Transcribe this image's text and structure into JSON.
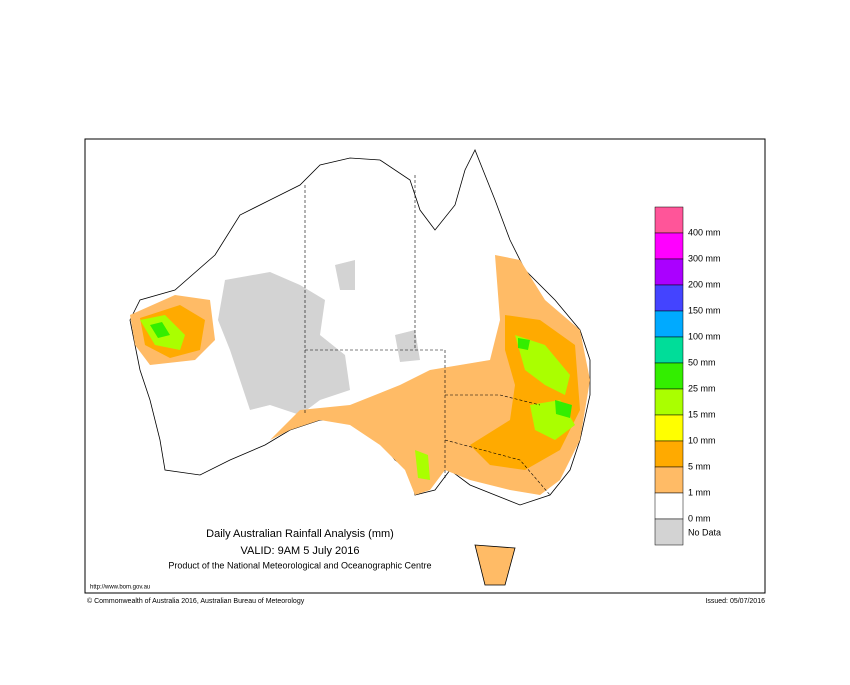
{
  "title": "Daily Australian Rainfall Analysis (mm)",
  "valid": "VALID: 9AM  5 July 2016",
  "product": "Product of the National Meteorological and Oceanographic Centre",
  "url": "http://www.bom.gov.au",
  "copyright": "© Commonwealth of Australia 2016, Australian Bureau of Meteorology",
  "issued": "Issued: 05/07/2016",
  "legend": {
    "colors": [
      "#ff5599",
      "#ff00ff",
      "#aa00ff",
      "#4444ff",
      "#00aaff",
      "#00dd99",
      "#33ee00",
      "#aaff00",
      "#ffff00",
      "#ffaa00",
      "#ffbb66",
      "#ffffff",
      "#d3d3d3"
    ],
    "labels": [
      "400 mm",
      "300 mm",
      "200 mm",
      "150 mm",
      "100 mm",
      "50 mm",
      "25 mm",
      "15 mm",
      "10 mm",
      "5 mm",
      "1 mm",
      "0 mm"
    ],
    "no_data": "No Data"
  }
}
